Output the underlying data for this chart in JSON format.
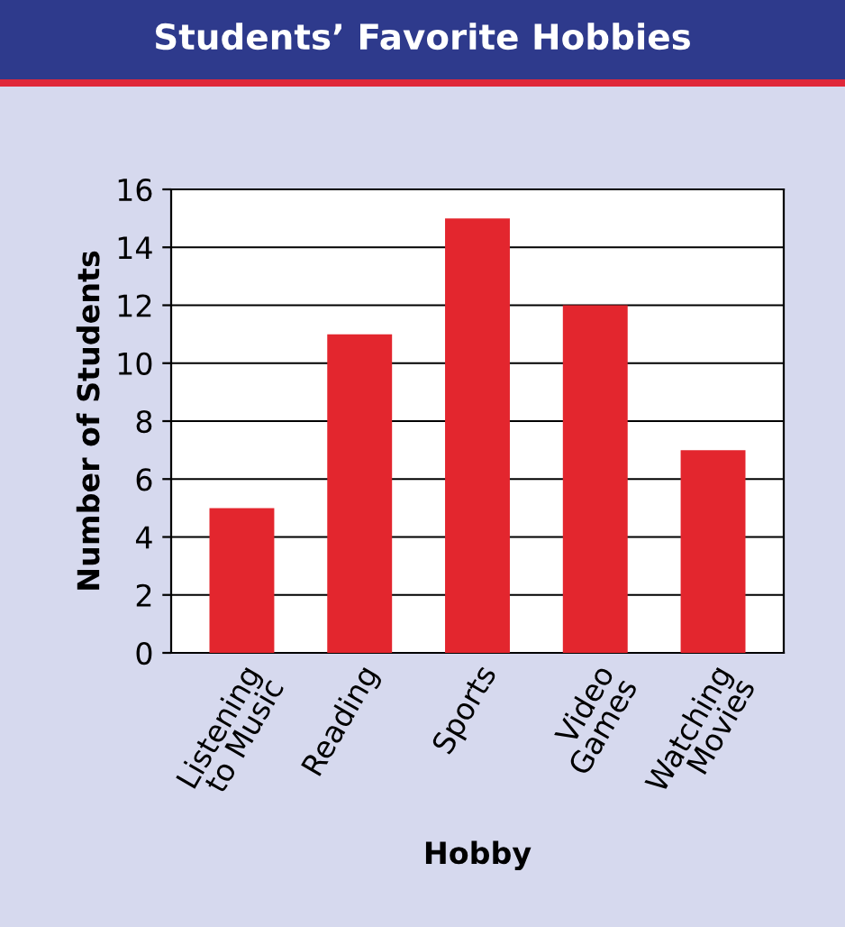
{
  "chart_data": {
    "type": "bar",
    "title": "Students’ Favorite Hobbies",
    "xlabel": "Hobby",
    "ylabel": "Number of Students",
    "categories": [
      "Listening\nto Music",
      "Reading",
      "Sports",
      "Video\nGames",
      "Watching\nMovies"
    ],
    "values": [
      5,
      11,
      15,
      12,
      7
    ],
    "color": "#e3262e",
    "ylim": [
      0,
      16
    ],
    "yticks": [
      0,
      2,
      4,
      6,
      8,
      10,
      12,
      14,
      16
    ],
    "grid": "y"
  }
}
